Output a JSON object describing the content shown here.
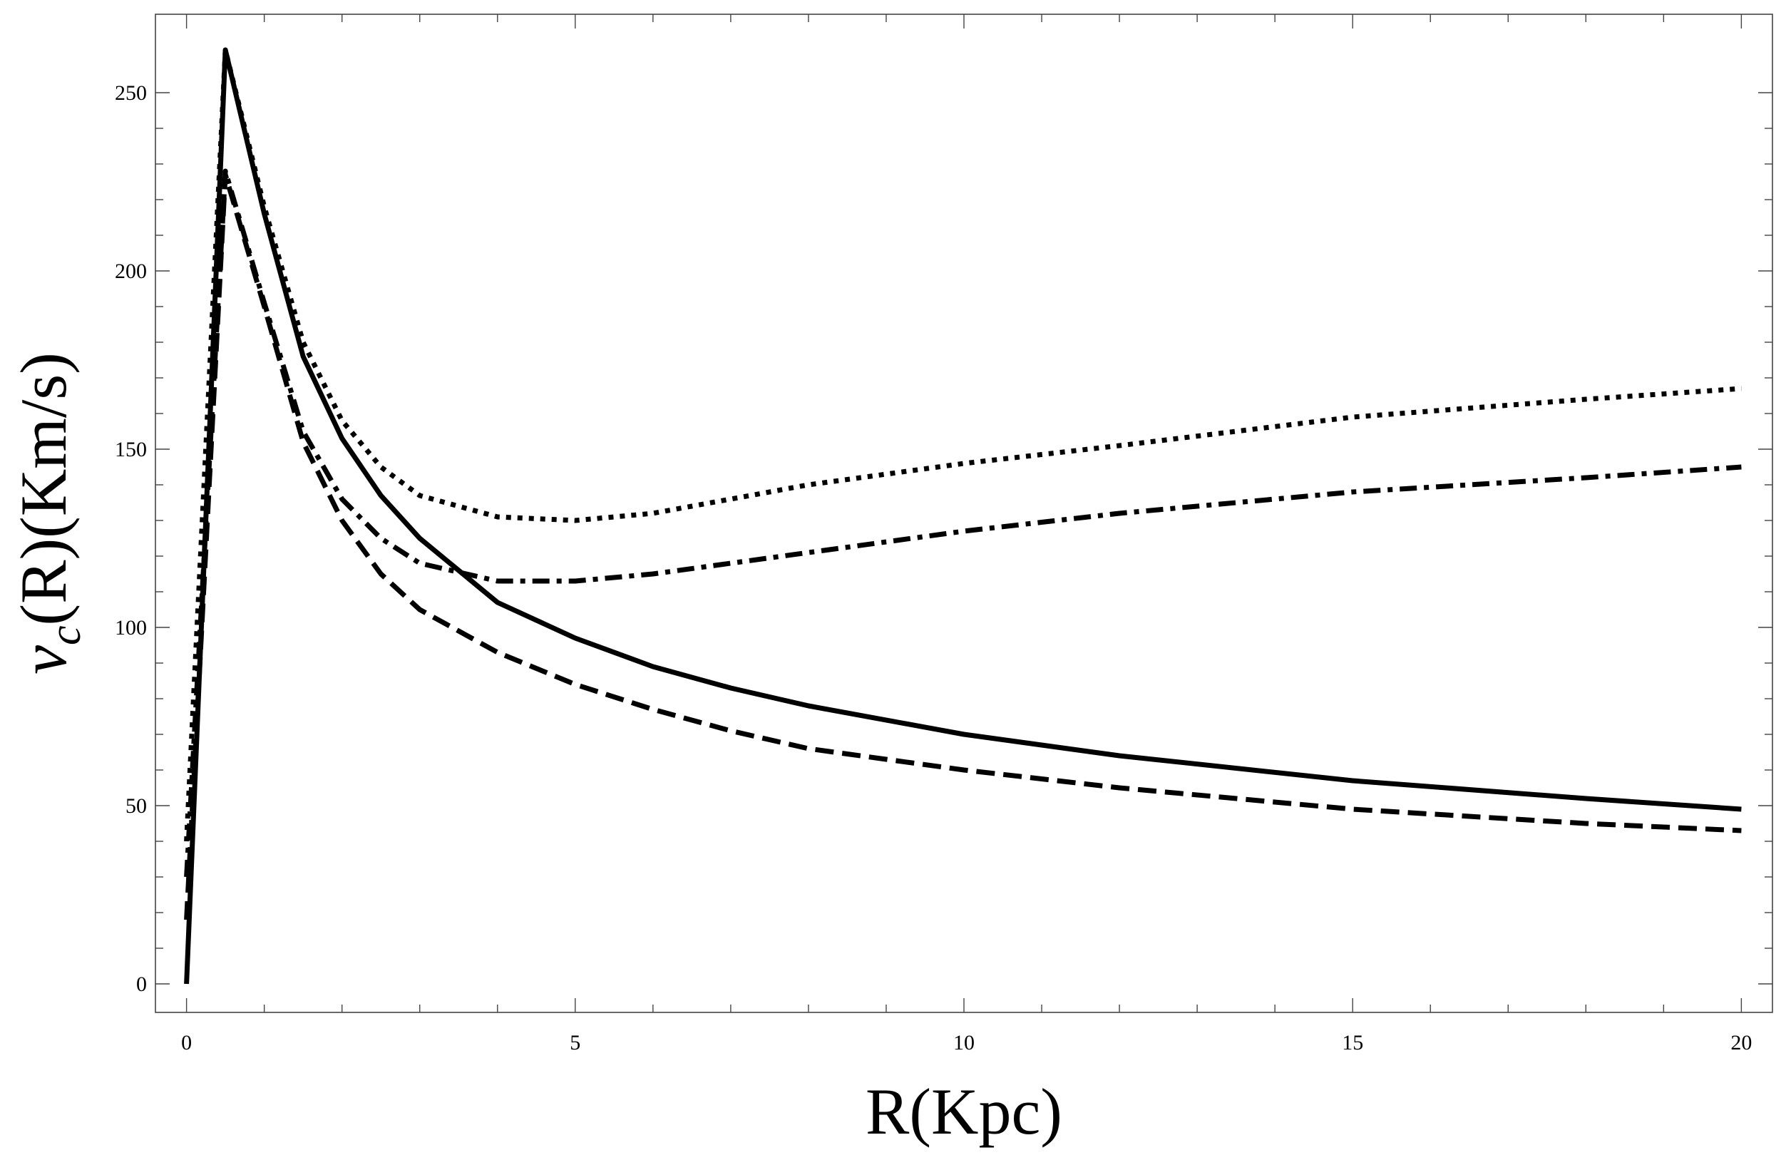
{
  "chart_data": {
    "type": "line",
    "title": "",
    "xlabel": "R(Kpc)",
    "ylabel": "v_c(R)(Km/s)",
    "ylabel_parts": {
      "v": "v",
      "sub": "c",
      "rest": "(R)(Km/s)"
    },
    "xlim": [
      -0.4,
      20.4
    ],
    "ylim": [
      -8,
      272
    ],
    "xticks": [
      0,
      5,
      10,
      15,
      20
    ],
    "xtick_labels": [
      "0",
      "5",
      "10",
      "15",
      "20"
    ],
    "yticks": [
      0,
      50,
      100,
      150,
      200,
      250
    ],
    "ytick_labels": [
      "0",
      "50",
      "100",
      "150",
      "200",
      "250"
    ],
    "grid": false,
    "legend": "none",
    "series": [
      {
        "style": "solid",
        "x": [
          0,
          0.5,
          1.0,
          1.5,
          2.0,
          2.5,
          3.0,
          4.0,
          5.0,
          6.0,
          7.0,
          8.0,
          10.0,
          12.0,
          15.0,
          18.0,
          20.0
        ],
        "y": [
          0,
          262,
          216,
          176,
          153,
          137,
          125,
          107,
          97,
          89,
          83,
          78,
          70,
          64,
          57,
          52,
          49
        ]
      },
      {
        "style": "dashed",
        "x": [
          0,
          0.5,
          1.0,
          1.5,
          2.0,
          2.5,
          3.0,
          4.0,
          5.0,
          6.0,
          7.0,
          8.0,
          10.0,
          12.0,
          15.0,
          18.0,
          20.0
        ],
        "y": [
          18,
          227,
          190,
          152,
          130,
          115,
          105,
          93,
          84,
          77,
          71,
          66,
          60,
          55,
          49,
          45,
          43
        ]
      },
      {
        "style": "dotted",
        "x": [
          0,
          0.5,
          1.0,
          1.5,
          2.0,
          2.5,
          3.0,
          4.0,
          5.0,
          6.0,
          7.0,
          8.0,
          10.0,
          12.0,
          15.0,
          18.0,
          20.0
        ],
        "y": [
          40,
          262,
          218,
          180,
          158,
          145,
          137,
          131,
          130,
          132,
          136,
          140,
          146,
          151,
          159,
          164,
          167
        ]
      },
      {
        "style": "dashdot",
        "x": [
          0,
          0.5,
          1.0,
          1.5,
          2.0,
          2.5,
          3.0,
          4.0,
          5.0,
          6.0,
          7.0,
          8.0,
          10.0,
          12.0,
          15.0,
          18.0,
          20.0
        ],
        "y": [
          30,
          228,
          191,
          155,
          136,
          125,
          118,
          113,
          113,
          115,
          118,
          121,
          127,
          132,
          138,
          142,
          145
        ]
      }
    ]
  }
}
